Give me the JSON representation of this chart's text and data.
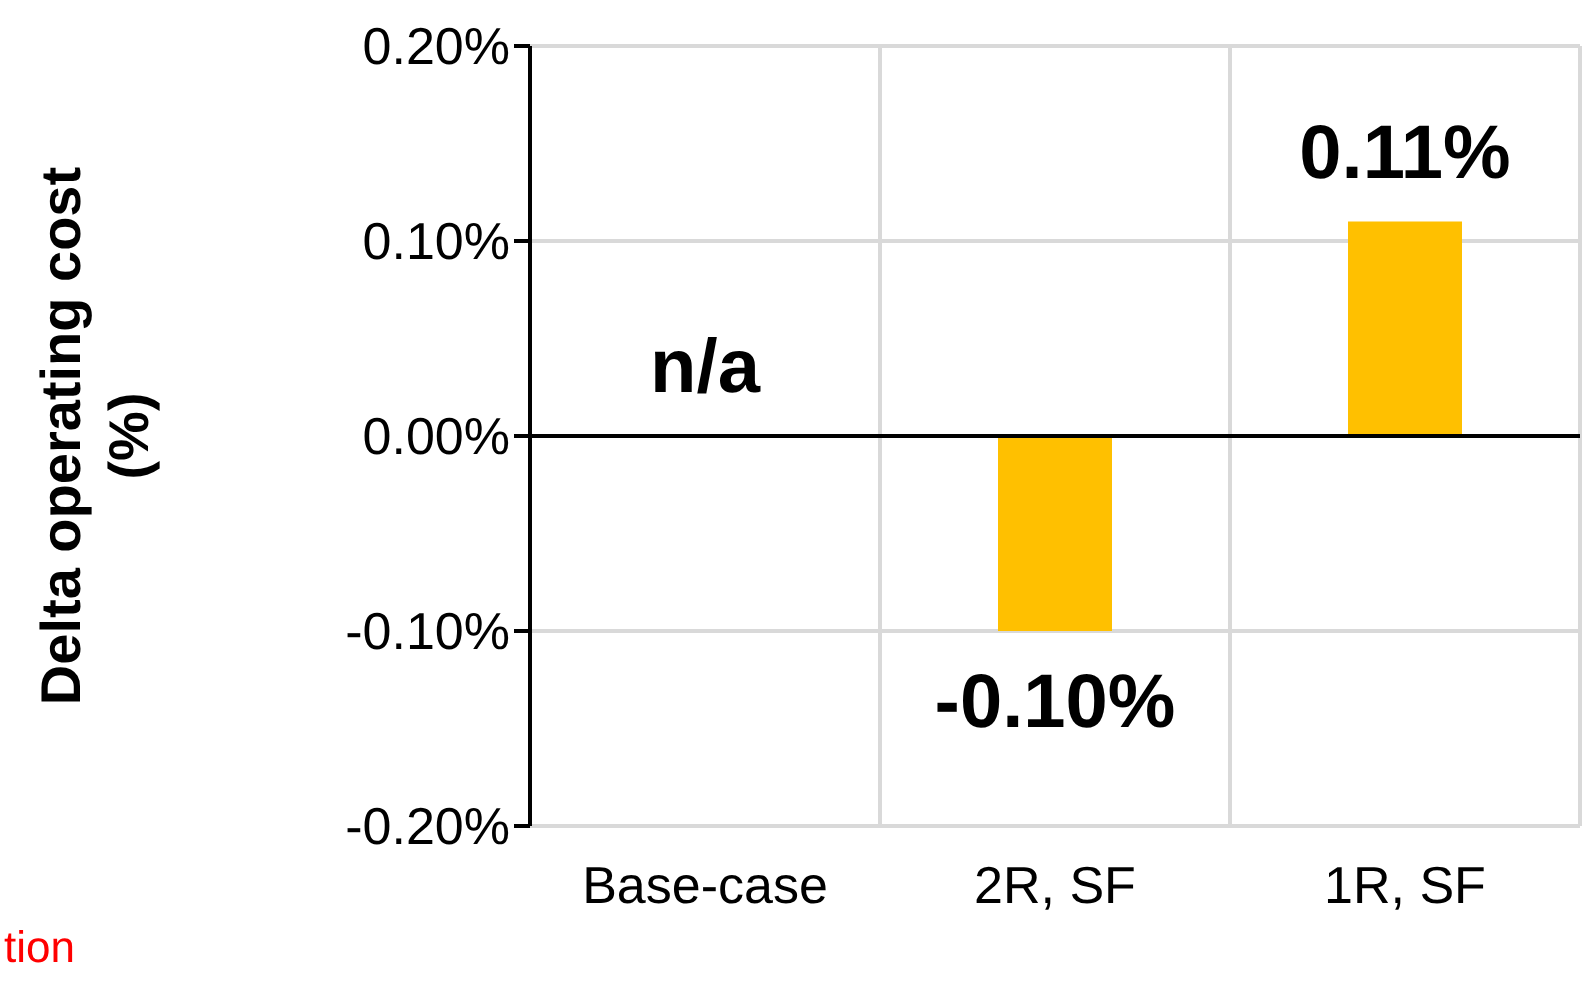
{
  "chart_data": {
    "type": "bar",
    "ylabel": "Delta operating cost\n(%)",
    "categories": [
      "Base-case",
      "2R, SF",
      "1R, SF"
    ],
    "values": [
      null,
      -0.1,
      0.11
    ],
    "colors": [
      "#ffc000",
      "#ffc000",
      "#ffc000"
    ],
    "value_labels": [
      "n/a",
      "-0.10%",
      "0.11%"
    ],
    "ylim": [
      -0.2,
      0.2
    ],
    "yticks": [
      {
        "value": -0.2,
        "label": "-0.20%"
      },
      {
        "value": -0.1,
        "label": "-0.10%"
      },
      {
        "value": 0,
        "label": "0.00%"
      },
      {
        "value": 0.1,
        "label": "0.10%"
      },
      {
        "value": 0.2,
        "label": "0.20%"
      }
    ],
    "ref_lines": [
      {
        "axis": "y",
        "value": 0,
        "color": "#000000"
      }
    ],
    "grid": true,
    "annotations": [
      "tion"
    ]
  }
}
